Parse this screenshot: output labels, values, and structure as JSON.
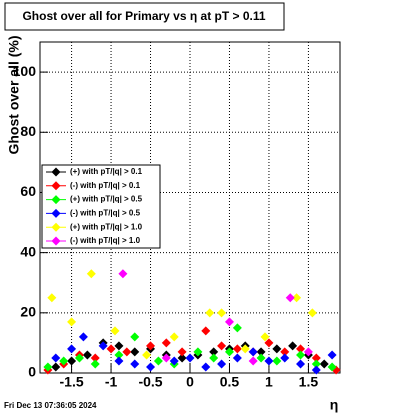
{
  "chart_data": {
    "type": "scatter",
    "title": "Ghost over all for Primary vs   η  at pT > 0.11",
    "x_label": "η",
    "y_label": "Ghost over all (%)",
    "timestamp": "Fri Dec 13 07:36:05 2024",
    "xlim": [
      -1.9,
      1.9
    ],
    "ylim": [
      0,
      110
    ],
    "xticks": [
      -1.5,
      -1,
      -0.5,
      0,
      0.5,
      1,
      1.5
    ],
    "yticks": [
      0,
      20,
      40,
      60,
      80,
      100
    ],
    "grid": true,
    "legend": "left",
    "series": [
      {
        "name": "(+) with pT/|q| > 0.1",
        "color": "#000000",
        "x": [
          -1.7,
          -1.5,
          -1.3,
          -1.1,
          -0.9,
          -0.7,
          -0.5,
          -0.3,
          -0.1,
          0.1,
          0.3,
          0.5,
          0.7,
          0.9,
          1.1,
          1.3,
          1.5,
          1.7
        ],
        "values": [
          2,
          4,
          6,
          10,
          9,
          7,
          8,
          6,
          5,
          6,
          7,
          8,
          9,
          7,
          8,
          9,
          6,
          3
        ]
      },
      {
        "name": "(-) with pT/|q| > 0.1",
        "color": "#ff0000",
        "x": [
          -1.8,
          -1.6,
          -1.4,
          -1.2,
          -1.0,
          -0.8,
          -0.5,
          -0.3,
          -0.1,
          0.2,
          0.4,
          0.6,
          0.8,
          1.0,
          1.2,
          1.4,
          1.6,
          1.85
        ],
        "values": [
          1,
          3,
          6,
          5,
          8,
          7,
          9,
          10,
          7,
          14,
          9,
          8,
          7,
          10,
          7,
          8,
          5,
          1
        ]
      },
      {
        "name": "(+) with pT/|q| > 0.5",
        "color": "#00ff00",
        "x": [
          -1.8,
          -1.6,
          -1.4,
          -1.2,
          -0.9,
          -0.7,
          -0.4,
          -0.2,
          0.1,
          0.3,
          0.5,
          0.6,
          0.9,
          1.1,
          1.4,
          1.6,
          1.8
        ],
        "values": [
          2,
          4,
          5,
          3,
          6,
          12,
          4,
          3,
          7,
          5,
          7,
          15,
          5,
          4,
          6,
          3,
          2
        ]
      },
      {
        "name": "(-) with pT/|q| > 0.5",
        "color": "#0000ff",
        "x": [
          -1.7,
          -1.5,
          -1.35,
          -1.1,
          -0.9,
          -0.7,
          -0.5,
          -0.2,
          0.0,
          0.2,
          0.4,
          0.6,
          0.8,
          1.0,
          1.2,
          1.4,
          1.6,
          1.8
        ],
        "values": [
          5,
          8,
          12,
          9,
          4,
          3,
          2,
          4,
          5,
          2,
          3,
          5,
          7,
          4,
          5,
          3,
          1,
          6
        ]
      },
      {
        "name": "(+) with pT/|q| > 1.0",
        "color": "#ffff00",
        "x": [
          -1.75,
          -1.5,
          -1.25,
          -0.95,
          -0.55,
          -0.2,
          0.25,
          0.4,
          0.7,
          0.95,
          1.35,
          1.55
        ],
        "values": [
          25,
          17,
          33,
          14,
          6,
          12,
          20,
          20,
          8,
          12,
          25,
          20
        ]
      },
      {
        "name": "(-) with pT/|q| > 1.0",
        "color": "#ff00ff",
        "x": [
          -0.85,
          -0.3,
          0.5,
          0.8,
          1.27,
          1.5
        ],
        "values": [
          33,
          5,
          17,
          4,
          25,
          7
        ]
      }
    ]
  }
}
